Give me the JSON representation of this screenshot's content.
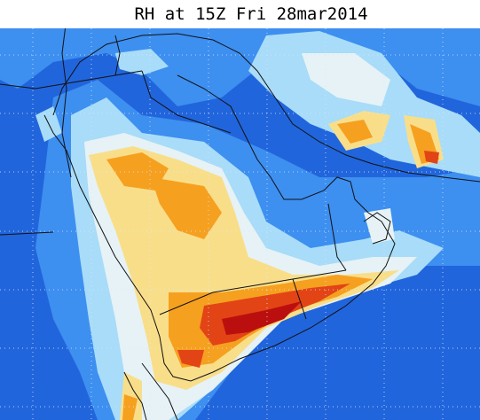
{
  "title": "RH at 15Z Fri 28mar2014"
}
